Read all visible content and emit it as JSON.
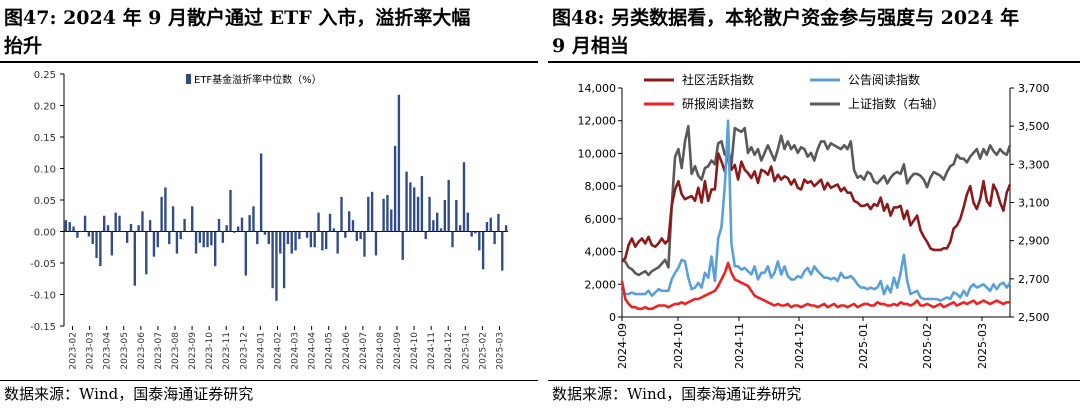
{
  "left": {
    "title": "图47:  2024 年 9 月散户通过 ETF 入市，溢折率大幅\n抬升",
    "source": "数据来源：Wind，国泰海通证券研究"
  },
  "right": {
    "title": "图48:  另类数据看，本轮散户资金参与强度与 2024 年\n9 月相当",
    "source": "数据来源：Wind，国泰海通证券研究"
  },
  "colors": {
    "bar": "#2f4b8a",
    "community": "#8b1a1a",
    "announcement": "#5aa0d8",
    "research": "#ee2222",
    "sse": "#595959"
  },
  "chart_data": [
    {
      "type": "bar",
      "legend": [
        "ETF基金溢折率中位数（%）"
      ],
      "ylim": [
        -0.15,
        0.25
      ],
      "yticks": [
        "0.25",
        "0.20",
        "0.15",
        "0.10",
        "0.05",
        "0.00",
        "-0.05",
        "-0.10",
        "-0.15"
      ],
      "xticks": [
        "2023-02",
        "2023-03",
        "2023-04",
        "2023-05",
        "2023-06",
        "2023-07",
        "2023-08",
        "2023-09",
        "2023-10",
        "2023-11",
        "2023-12",
        "2024-01",
        "2024-02",
        "2024-03",
        "2024-04",
        "2024-05",
        "2024-06",
        "2024-07",
        "2024-08",
        "2024-09",
        "2024-10",
        "2024-11",
        "2024-12",
        "2025-01",
        "2025-02",
        "2025-03"
      ],
      "values": [
        0.018,
        0.015,
        0.008,
        -0.01,
        0.0,
        0.025,
        -0.008,
        -0.02,
        -0.042,
        -0.055,
        0.025,
        0.01,
        -0.038,
        0.03,
        0.025,
        0.0,
        -0.018,
        0.012,
        -0.086,
        0.01,
        0.032,
        -0.068,
        0.018,
        -0.04,
        -0.025,
        0.055,
        0.07,
        -0.02,
        0.04,
        -0.035,
        -0.012,
        0.02,
        0.0,
        0.04,
        -0.035,
        -0.018,
        -0.025,
        -0.025,
        -0.022,
        -0.055,
        0.02,
        -0.018,
        0.01,
        0.066,
        -0.002,
        0.008,
        0.022,
        -0.07,
        0.026,
        0.04,
        -0.02,
        0.124,
        -0.005,
        -0.02,
        -0.09,
        -0.11,
        -0.035,
        -0.09,
        -0.02,
        -0.035,
        -0.03,
        -0.012,
        0.0,
        -0.01,
        -0.025,
        -0.025,
        0.03,
        -0.03,
        -0.028,
        0.028,
        0.005,
        -0.035,
        0.055,
        -0.01,
        0.032,
        0.018,
        -0.015,
        -0.012,
        -0.04,
        0.055,
        0.063,
        -0.038,
        0.0,
        0.052,
        0.058,
        0.035,
        0.136,
        0.217,
        -0.045,
        0.095,
        0.078,
        0.07,
        0.055,
        0.088,
        -0.012,
        0.055,
        0.018,
        0.03,
        0.005,
        0.05,
        0.082,
        -0.025,
        0.05,
        0.01,
        0.11,
        0.03,
        -0.008,
        -0.003,
        -0.03,
        -0.06,
        0.015,
        0.022,
        -0.02,
        0.028,
        -0.062,
        0.01
      ]
    },
    {
      "type": "line",
      "y_left_lim": [
        0,
        14000
      ],
      "y_left_ticks": [
        "14,000",
        "12,000",
        "10,000",
        "8,000",
        "6,000",
        "4,000",
        "2,000",
        "0"
      ],
      "y_right_lim": [
        2500,
        3700
      ],
      "y_right_ticks": [
        "3,700",
        "3,500",
        "3,300",
        "3,100",
        "2,900",
        "2,700",
        "2,500"
      ],
      "xticks": [
        "2024-09",
        "2024-10",
        "2024-11",
        "2024-12",
        "2025-01",
        "2025-02",
        "2025-03"
      ],
      "series": [
        {
          "name": "社区活跃指数",
          "axis": "left",
          "values": [
            3400,
            3600,
            4400,
            4800,
            4300,
            4600,
            4800,
            4500,
            4900,
            4400,
            4300,
            4500,
            4800,
            4500,
            4700,
            6800,
            7800,
            8300,
            7500,
            7200,
            7300,
            7400,
            7100,
            7900,
            7000,
            8300,
            7100,
            7800,
            7800,
            10000,
            9500,
            8900,
            10100,
            9000,
            9300,
            8400,
            9500,
            9000,
            8800,
            8500,
            8900,
            8200,
            9000,
            8900,
            8700,
            9200,
            8300,
            8700,
            8400,
            8600,
            8500,
            8100,
            8400,
            7900,
            7800,
            8400,
            8200,
            8300,
            8000,
            8200,
            8400,
            7800,
            8200,
            7900,
            8000,
            8100,
            7700,
            7900,
            7600,
            7600,
            7100,
            7000,
            6800,
            6800,
            6900,
            6600,
            6900,
            6800,
            7300,
            6500,
            6900,
            6200,
            6700,
            6700,
            6800,
            6000,
            6500,
            5600,
            5900,
            6200,
            5300,
            4900,
            4600,
            4200,
            4100,
            4100,
            4100,
            4200,
            4200,
            4600,
            5400,
            5600,
            6000,
            6700,
            7500,
            8000,
            7000,
            6600,
            7200,
            8300,
            7100,
            6800,
            8100,
            7700,
            7000,
            6500,
            7600,
            8100
          ]
        },
        {
          "name": "公告阅读指数",
          "axis": "left",
          "values": [
            1600,
            1400,
            1400,
            1500,
            1400,
            1400,
            1400,
            1400,
            1600,
            1300,
            1500,
            1700,
            1600,
            1600,
            1600,
            2300,
            2700,
            3000,
            3500,
            3400,
            2400,
            1700,
            1800,
            2100,
            1800,
            2700,
            2400,
            3700,
            2200,
            4800,
            5500,
            8000,
            12000,
            4500,
            3100,
            3100,
            2900,
            3000,
            2800,
            2600,
            3100,
            2300,
            2700,
            2700,
            3100,
            2400,
            2700,
            3400,
            2600,
            3100,
            2500,
            2300,
            2300,
            2500,
            2400,
            2800,
            3000,
            2600,
            3100,
            2800,
            2600,
            2400,
            2400,
            2300,
            2400,
            2200,
            2700,
            2400,
            2400,
            2500,
            2300,
            2000,
            1800,
            1800,
            1700,
            1800,
            1700,
            1800,
            2200,
            1400,
            1900,
            1500,
            2400,
            1800,
            2700,
            3800,
            2200,
            1400,
            1500,
            1600,
            1200,
            1100,
            1100,
            1100,
            1100,
            1100,
            1000,
            1100,
            1200,
            1100,
            1500,
            1400,
            1200,
            1600,
            1300,
            1800,
            2000,
            1800,
            1900,
            2000,
            1800,
            1600,
            2000,
            1700,
            2000,
            2100,
            1800,
            2100
          ]
        },
        {
          "name": "研报阅读指数",
          "axis": "left",
          "values": [
            2200,
            1100,
            800,
            600,
            600,
            500,
            500,
            600,
            500,
            500,
            600,
            700,
            700,
            700,
            600,
            700,
            800,
            800,
            900,
            800,
            900,
            1000,
            1100,
            1100,
            1200,
            1300,
            1400,
            1500,
            1600,
            1900,
            2300,
            2700,
            3300,
            2700,
            2300,
            2200,
            2100,
            2000,
            1900,
            1600,
            1300,
            1200,
            1100,
            1000,
            900,
            800,
            700,
            800,
            700,
            700,
            800,
            600,
            700,
            700,
            600,
            700,
            800,
            700,
            700,
            600,
            700,
            800,
            600,
            700,
            800,
            600,
            700,
            700,
            600,
            700,
            800,
            600,
            700,
            800,
            800,
            700,
            700,
            900,
            800,
            800,
            700,
            700,
            800,
            700,
            900,
            800,
            800,
            700,
            800,
            1000,
            700,
            700,
            800,
            700,
            600,
            700,
            800,
            600,
            700,
            800,
            900,
            700,
            800,
            900,
            800,
            900,
            1000,
            800,
            900,
            1000,
            900,
            800,
            900,
            1000,
            900,
            800,
            900,
            900
          ]
        },
        {
          "name": "上证指数（右轴）",
          "axis": "right",
          "values": [
            2800,
            2790,
            2760,
            2750,
            2730,
            2720,
            2730,
            2740,
            2720,
            2740,
            2750,
            2760,
            2780,
            2800,
            2760,
            3080,
            3340,
            3380,
            3280,
            3420,
            3500,
            3250,
            3290,
            3240,
            3220,
            3280,
            3290,
            3320,
            3300,
            3410,
            3420,
            3350,
            3380,
            3300,
            3490,
            3480,
            3470,
            3490,
            3360,
            3390,
            3350,
            3380,
            3320,
            3360,
            3400,
            3360,
            3320,
            3380,
            3450,
            3380,
            3420,
            3380,
            3400,
            3360,
            3390,
            3380,
            3340,
            3360,
            3320,
            3380,
            3420,
            3420,
            3380,
            3410,
            3400,
            3390,
            3380,
            3400,
            3380,
            3420,
            3270,
            3230,
            3240,
            3220,
            3260,
            3250,
            3210,
            3200,
            3220,
            3240,
            3200,
            3230,
            3250,
            3260,
            3250,
            3300,
            3200,
            3230,
            3250,
            3250,
            3240,
            3220,
            3180,
            3230,
            3260,
            3250,
            3240,
            3220,
            3260,
            3290,
            3300,
            3350,
            3330,
            3330,
            3310,
            3340,
            3360,
            3380,
            3330,
            3380,
            3350,
            3400,
            3370,
            3350,
            3380,
            3360,
            3350,
            3400
          ]
        }
      ]
    }
  ]
}
